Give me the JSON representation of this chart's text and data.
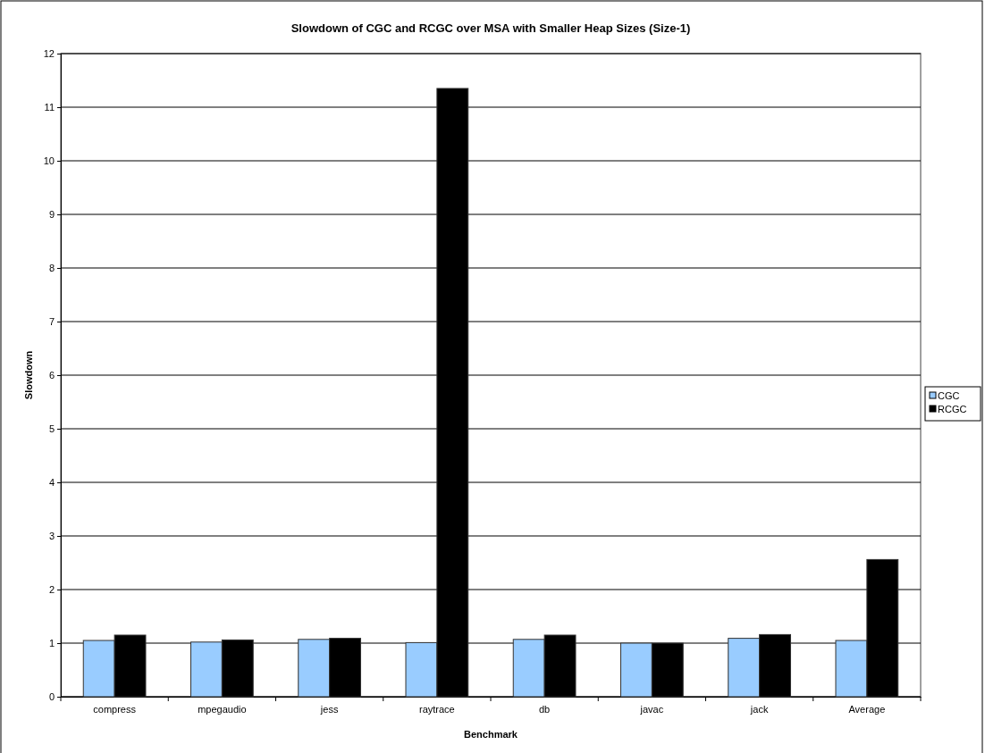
{
  "chart_data": {
    "type": "bar",
    "title": "Slowdown of CGC and RCGC over MSA with Smaller Heap Sizes (Size-1)",
    "xlabel": "Benchmark",
    "ylabel": "Slowdown",
    "categories": [
      "compress",
      "mpegaudio",
      "jess",
      "raytrace",
      "db",
      "javac",
      "jack",
      "Average"
    ],
    "series": [
      {
        "name": "CGC",
        "color": "#99ccff",
        "values": [
          1.05,
          1.02,
          1.07,
          1.01,
          1.07,
          1.0,
          1.09,
          1.05
        ]
      },
      {
        "name": "RCGC",
        "color": "#000000",
        "values": [
          1.15,
          1.06,
          1.09,
          11.35,
          1.15,
          1.0,
          1.16,
          2.56
        ]
      }
    ],
    "ylim": [
      0,
      12
    ],
    "yticks": [
      0,
      1,
      2,
      3,
      4,
      5,
      6,
      7,
      8,
      9,
      10,
      11,
      12
    ],
    "grid": "y",
    "legend": "right"
  }
}
